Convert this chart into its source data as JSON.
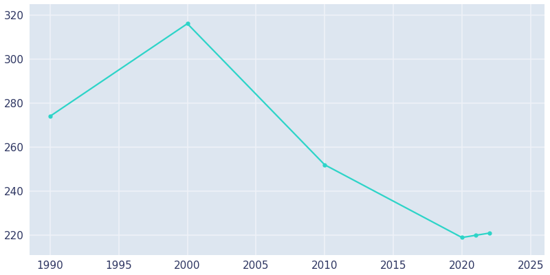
{
  "years": [
    1990,
    2000,
    2010,
    2020,
    2021,
    2022
  ],
  "population": [
    274,
    316,
    252,
    219,
    220,
    221
  ],
  "line_color": "#2dd4c8",
  "marker_style": "o",
  "marker_size": 3.5,
  "line_width": 1.6,
  "fig_bg_color": "#ffffff",
  "plot_bg_color": "#dde6f0",
  "grid_color": "#eef2f8",
  "tick_color": "#2d3561",
  "xlim": [
    1988.5,
    2026
  ],
  "ylim": [
    211,
    325
  ],
  "xticks": [
    1990,
    1995,
    2000,
    2005,
    2010,
    2015,
    2020,
    2025
  ],
  "yticks": [
    220,
    240,
    260,
    280,
    300,
    320
  ],
  "tick_fontsize": 11,
  "font_family": "DejaVu Sans"
}
